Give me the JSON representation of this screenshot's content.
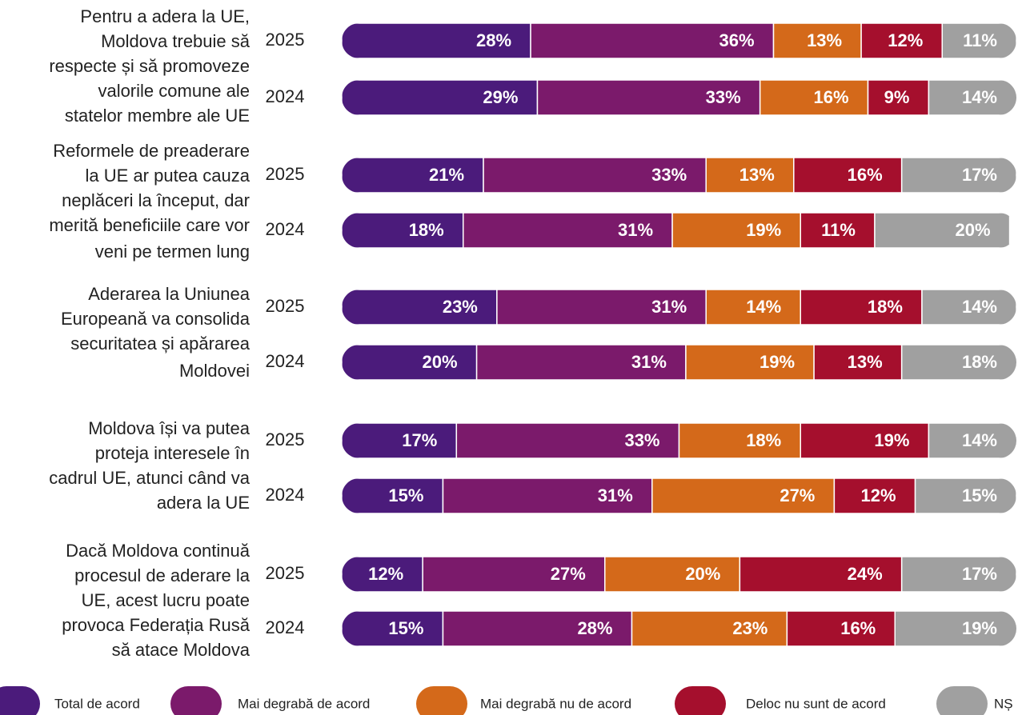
{
  "chart_data": {
    "type": "stacked_bar_horizontal",
    "group_labels": [
      [
        "Pentru a adera la UE,",
        "Moldova trebuie să",
        "respecte și să promoveze",
        "valorile comune ale",
        "statelor membre ale UE"
      ],
      [
        "Reformele de preaderare",
        "la UE ar putea cauza",
        "neplăceri la început, dar",
        "merită beneficiile care vor",
        "veni pe termen lung"
      ],
      [
        "Aderarea la Uniunea",
        "Europeană va consolida",
        "securitatea și apărarea",
        "Moldovei"
      ],
      [
        "Moldova își va putea",
        "proteja interesele în",
        "cadrul UE, atunci când va",
        "adera la UE"
      ],
      [
        "Dacă Moldova continuă",
        "procesul de aderare la",
        "UE, acest lucru poate",
        "provoca Federația Rusă",
        "să atace Moldova"
      ]
    ],
    "categories": [
      "2025",
      "2024",
      "2025",
      "2024",
      "2025",
      "2024",
      "2025",
      "2024",
      "2025",
      "2024"
    ],
    "xlim": [
      0,
      100
    ],
    "series": [
      {
        "name": "Total de acord",
        "color": "#4b1b7b",
        "values": [
          28,
          29,
          21,
          18,
          23,
          20,
          17,
          15,
          12,
          15
        ],
        "value_labels": [
          "28%",
          "29%",
          "21%",
          "18%",
          "23%",
          "20%",
          "17%",
          "15%",
          "12%",
          "15%"
        ]
      },
      {
        "name": "Mai degrabă de acord",
        "color": "#7b1a6b",
        "values": [
          36,
          33,
          33,
          31,
          31,
          31,
          33,
          31,
          27,
          28
        ],
        "value_labels": [
          "36%",
          "33%",
          "33%",
          "31%",
          "31%",
          "31%",
          "33%",
          "31%",
          "27%",
          "28%"
        ]
      },
      {
        "name": "Mai degrabă nu de acord",
        "color": "#d4691a",
        "values": [
          13,
          16,
          13,
          19,
          14,
          19,
          18,
          27,
          20,
          23
        ],
        "value_labels": [
          "13%",
          "16%",
          "13%",
          "19%",
          "14%",
          "19%",
          "18%",
          "27%",
          "20%",
          "23%"
        ]
      },
      {
        "name": "Deloc nu sunt de acord",
        "color": "#a50f2d",
        "values": [
          12,
          9,
          16,
          11,
          18,
          13,
          19,
          12,
          24,
          16
        ],
        "value_labels": [
          "12%",
          "9%",
          "16%",
          "11%",
          "18%",
          "13%",
          "19%",
          "12%",
          "24%",
          "16%"
        ]
      },
      {
        "name": "NȘ",
        "color": "#a0a0a0",
        "values": [
          11,
          14,
          17,
          20,
          14,
          18,
          14,
          15,
          17,
          19
        ],
        "value_labels": [
          "11%",
          "14%",
          "17%",
          "20%",
          "14%",
          "18%",
          "14%",
          "15%",
          "17%",
          "19%"
        ]
      }
    ]
  }
}
